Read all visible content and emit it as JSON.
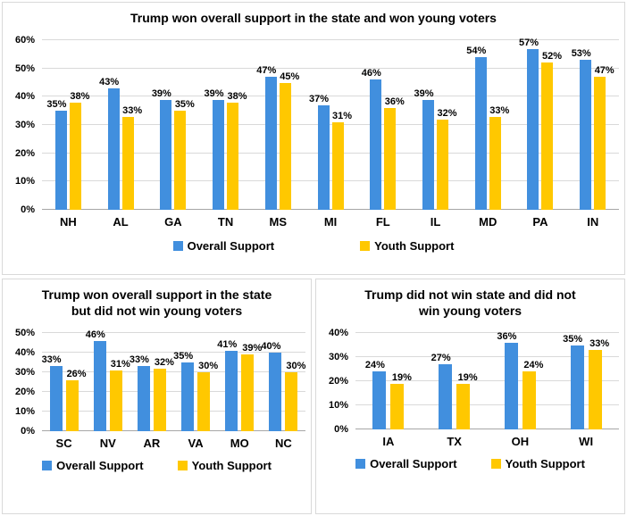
{
  "page": {
    "background": "#FFFFFF"
  },
  "colors": {
    "overall_blue": "#418FDE",
    "youth_yellow": "#FFC800",
    "gridline": "#D9D9D9",
    "axis_line": "#A6A6A6",
    "panel_border": "#D9D9D9",
    "text": "#000000"
  },
  "legend": {
    "overall_label": "Overall Support",
    "youth_label": "Youth Support"
  },
  "chart_data": [
    {
      "id": "won-state-won-young",
      "type": "bar",
      "title": "Trump won overall support in the state and won young voters",
      "title_lines": [
        "Trump won overall support in the state and won young voters"
      ],
      "categories": [
        "NH",
        "AL",
        "GA",
        "TN",
        "MS",
        "MI",
        "FL",
        "IL",
        "MD",
        "PA",
        "IN"
      ],
      "series": [
        {
          "name": "Overall Support",
          "color_key": "overall_blue",
          "values": [
            35,
            43,
            39,
            39,
            47,
            37,
            46,
            39,
            54,
            57,
            53
          ]
        },
        {
          "name": "Youth Support",
          "color_key": "youth_yellow",
          "values": [
            38,
            33,
            35,
            38,
            45,
            31,
            36,
            32,
            33,
            52,
            47
          ]
        }
      ],
      "xlabel": "",
      "ylabel": "",
      "ylim": [
        0,
        60
      ],
      "ytick_step": 10,
      "ytick_format": "percent",
      "data_label_format": "percent",
      "grid": true,
      "legend_position": "bottom"
    },
    {
      "id": "won-state-lost-young",
      "type": "bar",
      "title": "Trump won overall support in the state but did not win young voters",
      "title_lines": [
        "Trump won overall support in the state",
        "but did not win young voters"
      ],
      "categories": [
        "SC",
        "NV",
        "AR",
        "VA",
        "MO",
        "NC"
      ],
      "series": [
        {
          "name": "Overall Support",
          "color_key": "overall_blue",
          "values": [
            33,
            46,
            33,
            35,
            41,
            40
          ]
        },
        {
          "name": "Youth Support",
          "color_key": "youth_yellow",
          "values": [
            26,
            31,
            32,
            30,
            39,
            30
          ]
        }
      ],
      "xlabel": "",
      "ylabel": "",
      "ylim": [
        0,
        50
      ],
      "ytick_step": 10,
      "ytick_format": "percent",
      "data_label_format": "percent",
      "grid": true,
      "legend_position": "bottom"
    },
    {
      "id": "lost-state-lost-young",
      "type": "bar",
      "title": "Trump did not win state and did not win young voters",
      "title_lines": [
        "Trump did not win state and did not",
        "win young voters"
      ],
      "categories": [
        "IA",
        "TX",
        "OH",
        "WI"
      ],
      "series": [
        {
          "name": "Overall Support",
          "color_key": "overall_blue",
          "values": [
            24,
            27,
            36,
            35
          ]
        },
        {
          "name": "Youth Support",
          "color_key": "youth_yellow",
          "values": [
            19,
            19,
            24,
            33
          ]
        }
      ],
      "xlabel": "",
      "ylabel": "",
      "ylim": [
        0,
        40
      ],
      "ytick_step": 10,
      "ytick_format": "percent",
      "data_label_format": "percent",
      "grid": true,
      "legend_position": "bottom"
    }
  ]
}
